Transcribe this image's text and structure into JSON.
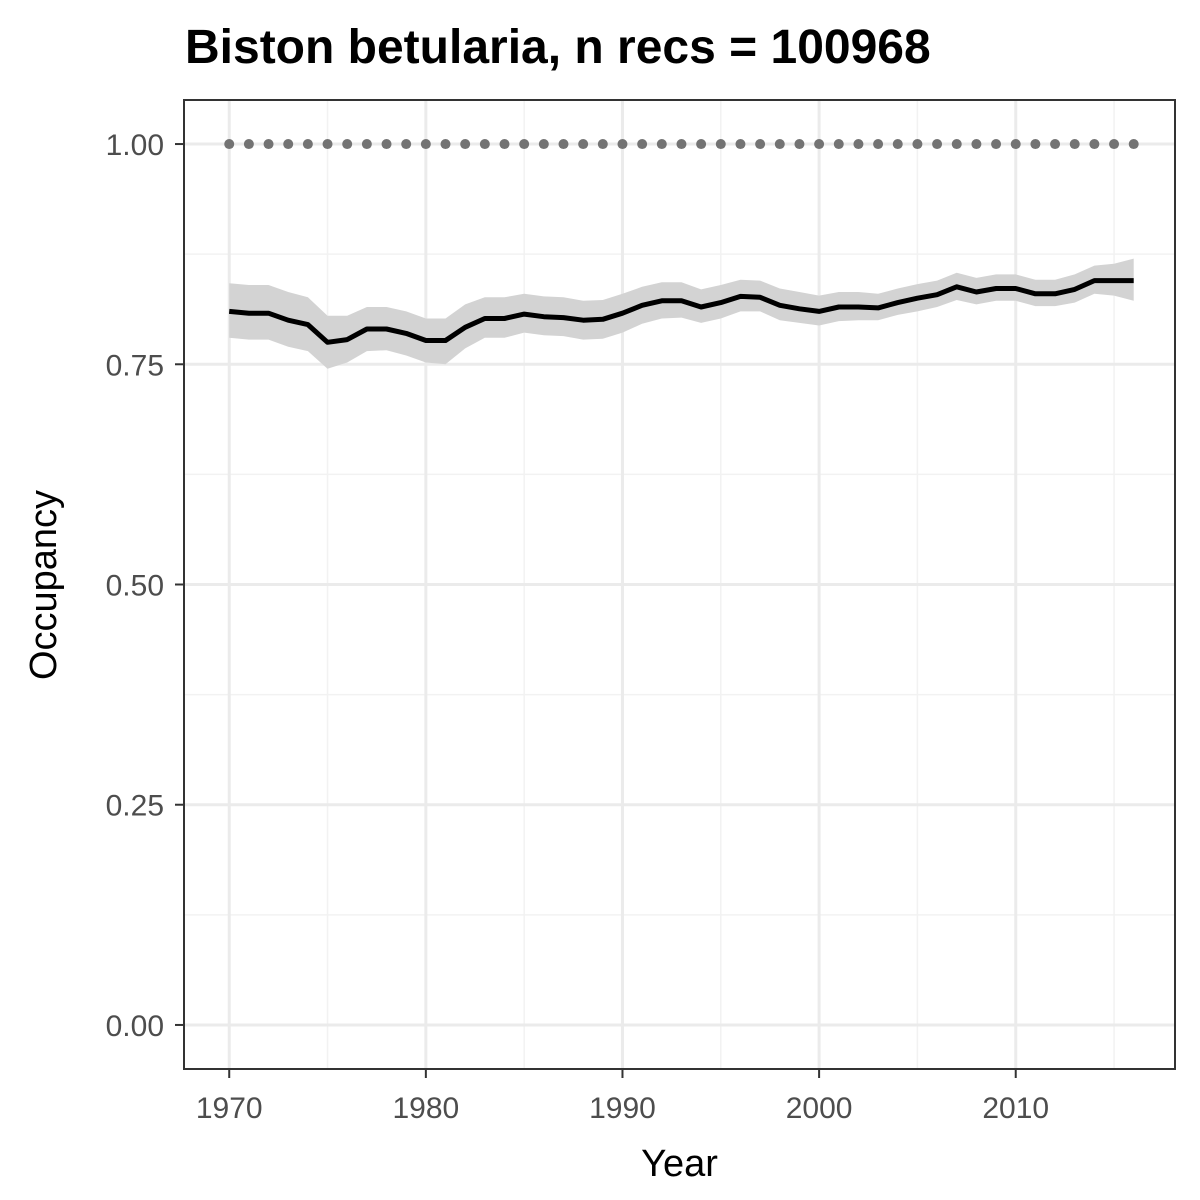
{
  "chart_data": {
    "type": "line",
    "title": "Biston betularia, n recs = 100968",
    "xlabel": "Year",
    "ylabel": "Occupancy",
    "xlim": [
      1967.7,
      2018.1
    ],
    "ylim": [
      -0.05,
      1.05
    ],
    "x_ticks": [
      1970,
      1980,
      1990,
      2000,
      2010
    ],
    "x_tick_labels": [
      "1970",
      "1980",
      "1990",
      "2000",
      "2010"
    ],
    "y_ticks": [
      0,
      0.25,
      0.5,
      0.75,
      1.0
    ],
    "y_tick_labels": [
      "0.00",
      "0.25",
      "0.50",
      "0.75",
      "1.00"
    ],
    "grid": true,
    "legend": "none",
    "colors": {
      "line": "#000000",
      "ribbon": "#d3d3d3",
      "reference": "#737373",
      "grid_major": "#ebebeb",
      "grid_minor": "#f2f2f2",
      "panel_border": "#333333"
    },
    "x": [
      1970,
      1971,
      1972,
      1973,
      1974,
      1975,
      1976,
      1977,
      1978,
      1979,
      1980,
      1981,
      1982,
      1983,
      1984,
      1985,
      1986,
      1987,
      1988,
      1989,
      1990,
      1991,
      1992,
      1993,
      1994,
      1995,
      1996,
      1997,
      1998,
      1999,
      2000,
      2001,
      2002,
      2003,
      2004,
      2005,
      2006,
      2007,
      2008,
      2009,
      2010,
      2011,
      2012,
      2013,
      2014,
      2015,
      2016
    ],
    "series": [
      {
        "values": [
          0.81,
          0.808,
          0.808,
          0.8,
          0.795,
          0.775,
          0.778,
          0.79,
          0.79,
          0.785,
          0.777,
          0.777,
          0.792,
          0.802,
          0.802,
          0.807,
          0.804,
          0.803,
          0.8,
          0.801,
          0.808,
          0.817,
          0.822,
          0.822,
          0.815,
          0.82,
          0.827,
          0.826,
          0.817,
          0.813,
          0.81,
          0.815,
          0.815,
          0.814,
          0.82,
          0.825,
          0.829,
          0.838,
          0.832,
          0.836,
          0.836,
          0.83,
          0.83,
          0.835,
          0.845,
          0.845,
          0.845
        ],
        "lower": [
          0.78,
          0.778,
          0.778,
          0.77,
          0.765,
          0.745,
          0.752,
          0.765,
          0.766,
          0.76,
          0.752,
          0.75,
          0.768,
          0.78,
          0.78,
          0.786,
          0.783,
          0.782,
          0.778,
          0.779,
          0.786,
          0.796,
          0.802,
          0.803,
          0.797,
          0.802,
          0.81,
          0.81,
          0.8,
          0.797,
          0.794,
          0.799,
          0.8,
          0.8,
          0.806,
          0.81,
          0.815,
          0.823,
          0.818,
          0.822,
          0.822,
          0.816,
          0.816,
          0.82,
          0.83,
          0.828,
          0.822
        ],
        "upper": [
          0.842,
          0.84,
          0.84,
          0.832,
          0.826,
          0.805,
          0.805,
          0.815,
          0.815,
          0.81,
          0.802,
          0.802,
          0.818,
          0.826,
          0.826,
          0.83,
          0.827,
          0.826,
          0.822,
          0.823,
          0.83,
          0.838,
          0.843,
          0.843,
          0.835,
          0.84,
          0.846,
          0.845,
          0.836,
          0.832,
          0.828,
          0.832,
          0.832,
          0.83,
          0.836,
          0.841,
          0.845,
          0.854,
          0.848,
          0.852,
          0.852,
          0.846,
          0.846,
          0.852,
          0.862,
          0.864,
          0.87
        ]
      },
      {
        "style": "dotted",
        "values": [
          1,
          1,
          1,
          1,
          1,
          1,
          1,
          1,
          1,
          1,
          1,
          1,
          1,
          1,
          1,
          1,
          1,
          1,
          1,
          1,
          1,
          1,
          1,
          1,
          1,
          1,
          1,
          1,
          1,
          1,
          1,
          1,
          1,
          1,
          1,
          1,
          1,
          1,
          1,
          1,
          1,
          1,
          1,
          1,
          1,
          1,
          1
        ]
      }
    ]
  }
}
